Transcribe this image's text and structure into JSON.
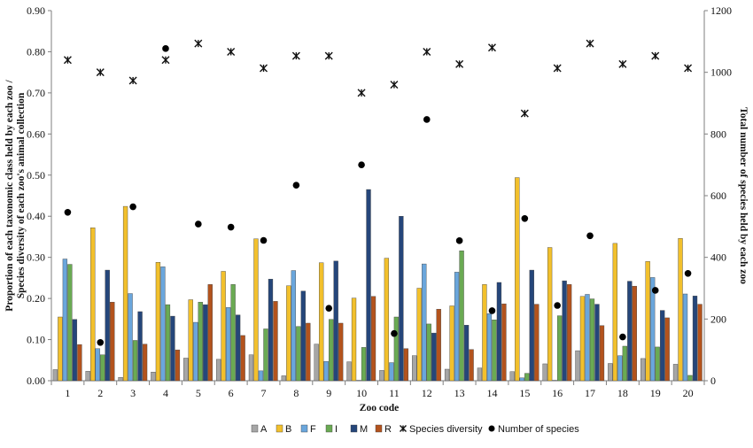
{
  "chart_data": {
    "type": "bar",
    "xlabel": "Zoo code",
    "ylabel_left_line1": "Proportion of each taxonomic class held by each zoo /",
    "ylabel_left_line2": "Species diversity of each zoo's animal collection",
    "ylabel_right": "Total number of species held by each zoo",
    "ylim_left": [
      0,
      0.9
    ],
    "ylim_right": [
      0,
      1200
    ],
    "left_ticks": [
      "0.00",
      "0.10",
      "0.20",
      "0.30",
      "0.40",
      "0.50",
      "0.60",
      "0.70",
      "0.80",
      "0.90"
    ],
    "right_ticks": [
      "0",
      "200",
      "400",
      "600",
      "800",
      "1000",
      "1200"
    ],
    "categories": [
      "1",
      "2",
      "3",
      "4",
      "5",
      "6",
      "7",
      "8",
      "9",
      "10",
      "11",
      "12",
      "13",
      "14",
      "15",
      "16",
      "17",
      "18",
      "19",
      "20"
    ],
    "series": [
      {
        "name": "A",
        "color": "#a6a6a6",
        "values": [
          0.027,
          0.023,
          0.008,
          0.021,
          0.055,
          0.052,
          0.063,
          0.012,
          0.089,
          0.046,
          0.025,
          0.061,
          0.028,
          0.031,
          0.022,
          0.041,
          0.073,
          0.042,
          0.054,
          0.04
        ]
      },
      {
        "name": "B",
        "color": "#f2c02c",
        "values": [
          0.155,
          0.372,
          0.424,
          0.288,
          0.197,
          0.266,
          0.345,
          0.231,
          0.287,
          0.201,
          0.298,
          0.225,
          0.182,
          0.234,
          0.494,
          0.324,
          0.205,
          0.334,
          0.29,
          0.346
        ]
      },
      {
        "name": "F",
        "color": "#6aa6dc",
        "values": [
          0.296,
          0.078,
          0.212,
          0.277,
          0.142,
          0.178,
          0.024,
          0.268,
          0.047,
          0.001,
          0.044,
          0.284,
          0.264,
          0.163,
          0.007,
          0.001,
          0.21,
          0.061,
          0.251,
          0.211
        ]
      },
      {
        "name": "I",
        "color": "#6aaa53",
        "values": [
          0.283,
          0.063,
          0.098,
          0.185,
          0.191,
          0.234,
          0.126,
          0.132,
          0.149,
          0.081,
          0.155,
          0.138,
          0.316,
          0.148,
          0.018,
          0.158,
          0.199,
          0.084,
          0.082,
          0.013
        ]
      },
      {
        "name": "M",
        "color": "#25467a",
        "values": [
          0.149,
          0.269,
          0.168,
          0.157,
          0.185,
          0.16,
          0.247,
          0.218,
          0.291,
          0.465,
          0.4,
          0.116,
          0.135,
          0.239,
          0.269,
          0.243,
          0.186,
          0.242,
          0.171,
          0.206
        ]
      },
      {
        "name": "R",
        "color": "#b3531d",
        "values": [
          0.088,
          0.191,
          0.089,
          0.075,
          0.234,
          0.11,
          0.193,
          0.14,
          0.14,
          0.205,
          0.078,
          0.174,
          0.076,
          0.187,
          0.186,
          0.234,
          0.134,
          0.23,
          0.153,
          0.186
        ]
      }
    ],
    "species_diversity": {
      "name": "Species diversity",
      "axis": "left",
      "values": [
        0.78,
        0.75,
        0.73,
        0.78,
        0.82,
        0.8,
        0.76,
        0.79,
        0.79,
        0.7,
        0.72,
        0.8,
        0.77,
        0.81,
        0.65,
        0.76,
        0.82,
        0.77,
        0.79,
        0.76
      ]
    },
    "number_of_species": {
      "name": "Number of species",
      "axis": "right",
      "values": [
        546,
        124,
        564,
        1077,
        508,
        498,
        455,
        634,
        235,
        700,
        153,
        847,
        454,
        227,
        526,
        244,
        470,
        142,
        293,
        348
      ]
    },
    "legend": [
      "A",
      "B",
      "F",
      "I",
      "M",
      "R",
      "Species diversity",
      "Number of species"
    ],
    "legend_position": "bottom",
    "grid": false
  }
}
